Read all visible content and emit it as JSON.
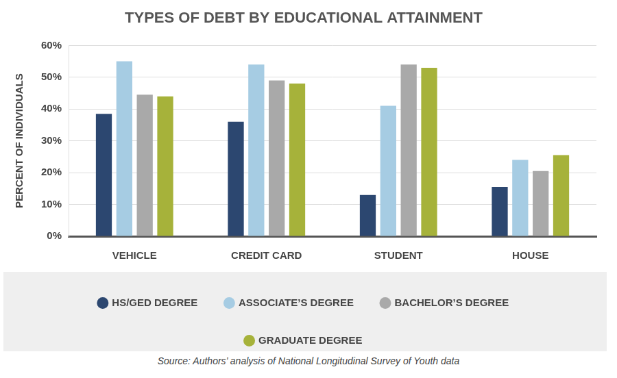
{
  "chart_data": {
    "type": "bar",
    "title": "TYPES OF DEBT BY EDUCATIONAL ATTAINMENT",
    "y_label": "PERCENT OF INDIVIDUALS",
    "categories": [
      "VEHICLE",
      "CREDIT CARD",
      "STUDENT",
      "HOUSE"
    ],
    "series": [
      {
        "name": "HS/GED DEGREE",
        "color": "#2c4770",
        "values": [
          38.5,
          36,
          13,
          15.5
        ]
      },
      {
        "name": "ASSOCIATE’S DEGREE",
        "color": "#a6cce3",
        "values": [
          55,
          54,
          41,
          24
        ]
      },
      {
        "name": "BACHELOR’S DEGREE",
        "color": "#a9a9a9",
        "values": [
          44.5,
          49,
          54,
          20.5
        ]
      },
      {
        "name": "GRADUATE DEGREE",
        "color": "#a6b23a",
        "values": [
          44,
          48,
          53,
          25.5
        ]
      }
    ],
    "ylim": [
      0,
      60
    ],
    "yticks": [
      {
        "value": 0,
        "label": "0%"
      },
      {
        "value": 10,
        "label": "10%"
      },
      {
        "value": 20,
        "label": "20%"
      },
      {
        "value": 30,
        "label": "30%"
      },
      {
        "value": 40,
        "label": "40%"
      },
      {
        "value": 50,
        "label": "50%"
      },
      {
        "value": 60,
        "label": "60%"
      }
    ],
    "grid": true,
    "legend": "bottom",
    "annotation": "Source: Authors’ analysis of National Longitudinal Survey of Youth data"
  }
}
